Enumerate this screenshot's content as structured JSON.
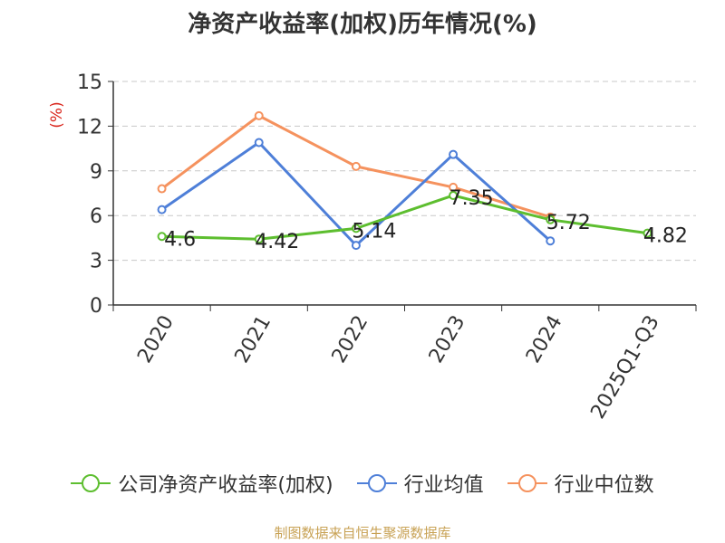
{
  "chart_data": {
    "type": "line",
    "title": "净资产收益率(加权)历年情况(%)",
    "ylabel": "(%)",
    "xlabel": "",
    "categories": [
      "2020",
      "2021",
      "2022",
      "2023",
      "2024",
      "2025Q1-Q3"
    ],
    "ylim": [
      0,
      15
    ],
    "yticks": [
      0,
      3,
      6,
      9,
      12,
      15
    ],
    "grid": true,
    "legend_position": "bottom",
    "series": [
      {
        "name": "公司净资产收益率(加权)",
        "color": "#5dbe2f",
        "values": [
          4.6,
          4.42,
          5.14,
          7.35,
          5.72,
          4.82
        ],
        "labels": [
          "4.6",
          "4.42",
          "5.14",
          "7.35",
          "5.72",
          "4.82"
        ]
      },
      {
        "name": "行业均值",
        "color": "#4e7fd8",
        "values": [
          6.4,
          10.9,
          4.0,
          10.1,
          4.3,
          null
        ]
      },
      {
        "name": "行业中位数",
        "color": "#f5925e",
        "values": [
          7.8,
          12.7,
          9.3,
          7.9,
          5.9,
          null
        ]
      }
    ]
  },
  "source": "制图数据来自恒生聚源数据库"
}
